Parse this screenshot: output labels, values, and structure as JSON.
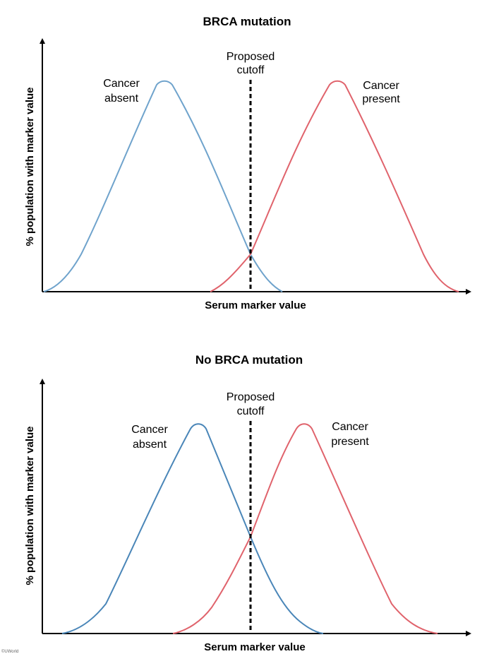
{
  "chart_data": [
    {
      "type": "line",
      "title": "BRCA mutation",
      "xlabel": "Serum marker value",
      "ylabel": "% population with marker value",
      "grid": false,
      "ticks": false,
      "cutoff": {
        "label_line1": "Proposed",
        "label_line2": "cutoff",
        "style": "dashed",
        "color": "#000000"
      },
      "series": [
        {
          "name": "Cancer absent",
          "label_line1": "Cancer",
          "label_line2": "absent",
          "color": "#6fa3cc"
        },
        {
          "name": "Cancer present",
          "label_line1": "Cancer",
          "label_line2": "present",
          "color": "#e0636c"
        }
      ]
    },
    {
      "type": "line",
      "title": "No BRCA mutation",
      "xlabel": "Serum marker value",
      "ylabel": "% population with marker value",
      "grid": false,
      "ticks": false,
      "cutoff": {
        "label_line1": "Proposed",
        "label_line2": "cutoff",
        "style": "dashed",
        "color": "#000000"
      },
      "series": [
        {
          "name": "Cancer absent",
          "label_line1": "Cancer",
          "label_line2": "absent",
          "color": "#4a86b8"
        },
        {
          "name": "Cancer present",
          "label_line1": "Cancer",
          "label_line2": "present",
          "color": "#e0636c"
        }
      ]
    }
  ],
  "footer": {
    "copyright": "©UWorld"
  }
}
